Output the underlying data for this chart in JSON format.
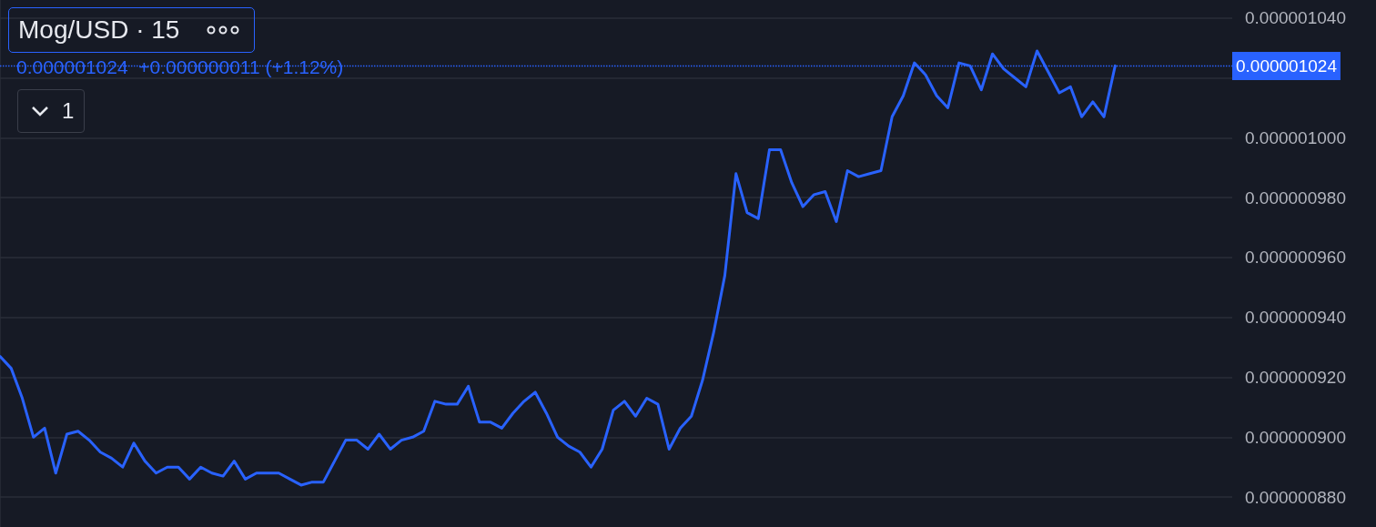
{
  "chart_data": {
    "type": "line",
    "title": "Mog/USD · 15",
    "subtitle": "0.000001024  +0.000000011 (+1.12%)",
    "annotations": [
      "1"
    ],
    "categories": [
      null,
      null,
      null,
      null,
      null,
      null,
      null,
      null,
      null,
      null,
      null,
      null,
      null,
      null,
      null,
      null,
      null,
      null,
      null,
      null,
      null,
      null,
      null,
      null,
      null,
      null,
      null,
      null,
      null,
      null,
      null,
      null,
      null,
      null,
      null,
      null,
      null,
      null,
      null,
      null,
      null,
      null,
      null,
      null,
      null,
      null,
      null,
      null,
      null,
      null,
      null,
      null,
      null,
      null,
      null,
      null,
      null,
      null,
      null,
      null,
      null,
      null,
      null,
      null,
      null,
      null,
      null,
      null,
      null,
      null,
      null,
      null,
      null,
      null,
      null,
      null,
      null,
      null,
      null,
      null,
      null,
      null,
      null,
      null,
      null,
      null,
      null,
      null,
      null,
      null,
      null,
      null,
      null,
      null,
      null,
      null,
      null,
      null,
      null,
      null,
      null
    ],
    "series": [
      {
        "color": "#2962ff",
        "values": [
          9.27e-07,
          9.23e-07,
          9.13e-07,
          9e-07,
          9.03e-07,
          8.88e-07,
          9.01e-07,
          9.02e-07,
          8.99e-07,
          8.95e-07,
          8.93e-07,
          8.9e-07,
          8.98e-07,
          8.92e-07,
          8.88e-07,
          8.9e-07,
          8.9e-07,
          8.86e-07,
          8.9e-07,
          8.88e-07,
          8.87e-07,
          8.92e-07,
          8.86e-07,
          8.88e-07,
          8.88e-07,
          8.88e-07,
          8.86e-07,
          8.84e-07,
          8.85e-07,
          8.85e-07,
          8.92e-07,
          8.99e-07,
          8.99e-07,
          8.96e-07,
          9.01e-07,
          8.96e-07,
          8.99e-07,
          9e-07,
          9.02e-07,
          9.12e-07,
          9.11e-07,
          9.11e-07,
          9.17e-07,
          9.05e-07,
          9.05e-07,
          9.03e-07,
          9.08e-07,
          9.12e-07,
          9.15e-07,
          9.08e-07,
          9e-07,
          8.97e-07,
          8.95e-07,
          8.9e-07,
          8.96e-07,
          9.09e-07,
          9.12e-07,
          9.07e-07,
          9.13e-07,
          9.11e-07,
          8.96e-07,
          9.03e-07,
          9.07e-07,
          9.19e-07,
          9.35e-07,
          9.54e-07,
          9.88e-07,
          9.75e-07,
          9.73e-07,
          9.96e-07,
          9.96e-07,
          9.85e-07,
          9.77e-07,
          9.81e-07,
          9.82e-07,
          9.72e-07,
          9.89e-07,
          9.87e-07,
          9.88e-07,
          9.89e-07,
          1.007e-06,
          1.014e-06,
          1.025e-06,
          1.021e-06,
          1.014e-06,
          1.01e-06,
          1.025e-06,
          1.024e-06,
          1.016e-06,
          1.028e-06,
          1.023e-06,
          1.02e-06,
          1.017e-06,
          1.029e-06,
          1.022e-06,
          1.015e-06,
          1.017e-06,
          1.007e-06,
          1.012e-06,
          1.007e-06,
          1.024e-06
        ]
      }
    ],
    "ylim": [
      8.7e-07,
      1.046e-06
    ],
    "yticks": [
      {
        "value": 8.8e-07,
        "label": "0.000000880"
      },
      {
        "value": 9e-07,
        "label": "0.000000900"
      },
      {
        "value": 9.2e-07,
        "label": "0.000000920"
      },
      {
        "value": 9.4e-07,
        "label": "0.000000940"
      },
      {
        "value": 9.6e-07,
        "label": "0.000000960"
      },
      {
        "value": 9.8e-07,
        "label": "0.000000980"
      },
      {
        "value": 1e-06,
        "label": "0.000001000"
      },
      {
        "value": 1.02e-06,
        "label": null
      },
      {
        "value": 1.04e-06,
        "label": "0.000001040"
      }
    ],
    "ref_lines": [
      {
        "axis": "y",
        "value": 1.024e-06,
        "label": "0.000001024",
        "color": "#2962ff",
        "line_style": "dotted"
      }
    ],
    "grid": "y",
    "marker": "none",
    "line_style": "solid",
    "tick_labels": "y"
  }
}
